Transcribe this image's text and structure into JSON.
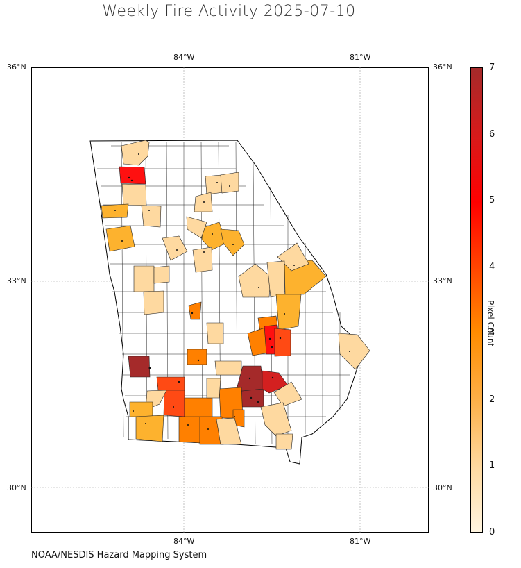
{
  "title": "Weekly Fire Activity 2025-07-10",
  "source": "NOAA/NESDIS Hazard Mapping System",
  "map": {
    "region": "Georgia counties",
    "lon_ticks_top": [
      "84°W",
      "81°W"
    ],
    "lon_ticks_bottom": [
      "84°W",
      "81°W"
    ],
    "lat_ticks_left": [
      "36°N",
      "33°N",
      "30°N"
    ],
    "lat_ticks_right": [
      "36°N",
      "33°N",
      "30°N"
    ],
    "gridlines": true
  },
  "colorbar": {
    "label": "Pixel Count",
    "ticks": [
      "0",
      "1",
      "2",
      "3",
      "4",
      "5",
      "6",
      "7"
    ],
    "min": 0,
    "max": 7,
    "colors": {
      "0": "#ffffff",
      "1": "#fed9a0",
      "2": "#fdb22e",
      "3": "#ff8000",
      "4": "#ff4a14",
      "5": "#ff1010",
      "6": "#d42020",
      "7": "#a52a2a"
    }
  },
  "counties": [
    {
      "id": "nw1",
      "value": 1
    },
    {
      "id": "nw-red",
      "value": 5
    },
    {
      "id": "nw2",
      "value": 1
    },
    {
      "id": "w1",
      "value": 2
    },
    {
      "id": "w2",
      "value": 1
    },
    {
      "id": "w3",
      "value": 2
    },
    {
      "id": "ne1",
      "value": 1
    },
    {
      "id": "ne2",
      "value": 1
    },
    {
      "id": "ne3",
      "value": 1
    },
    {
      "id": "c1",
      "value": 2
    },
    {
      "id": "c2",
      "value": 2
    },
    {
      "id": "c3",
      "value": 1
    },
    {
      "id": "c4",
      "value": 1
    },
    {
      "id": "c5",
      "value": 1
    },
    {
      "id": "e1",
      "value": 2
    },
    {
      "id": "e2",
      "value": 1
    },
    {
      "id": "e3",
      "value": 1
    },
    {
      "id": "e4",
      "value": 1
    },
    {
      "id": "w4",
      "value": 1
    },
    {
      "id": "w5",
      "value": 1
    },
    {
      "id": "c6",
      "value": 3
    },
    {
      "id": "c7",
      "value": 1
    },
    {
      "id": "e5",
      "value": 2
    },
    {
      "id": "e6",
      "value": 3
    },
    {
      "id": "e7",
      "value": 3
    },
    {
      "id": "e8",
      "value": 5
    },
    {
      "id": "e9",
      "value": 4
    },
    {
      "id": "se1",
      "value": 1
    },
    {
      "id": "sw1",
      "value": 7
    },
    {
      "id": "c8",
      "value": 3
    },
    {
      "id": "c9",
      "value": 1
    },
    {
      "id": "c10",
      "value": 1
    },
    {
      "id": "s1",
      "value": 7
    },
    {
      "id": "s2",
      "value": 7
    },
    {
      "id": "s3",
      "value": 6
    },
    {
      "id": "s4",
      "value": 3
    },
    {
      "id": "s5",
      "value": 1
    },
    {
      "id": "s6",
      "value": 1
    },
    {
      "id": "sw2",
      "value": 4
    },
    {
      "id": "sw3",
      "value": 4
    },
    {
      "id": "sw4",
      "value": 1
    },
    {
      "id": "sw5",
      "value": 2
    },
    {
      "id": "sw6",
      "value": 2
    },
    {
      "id": "sw7",
      "value": 3
    },
    {
      "id": "sw8",
      "value": 3
    },
    {
      "id": "s7",
      "value": 3
    },
    {
      "id": "s8",
      "value": 1
    },
    {
      "id": "s9",
      "value": 3
    },
    {
      "id": "s10",
      "value": 1
    },
    {
      "id": "s11",
      "value": 1
    }
  ]
}
